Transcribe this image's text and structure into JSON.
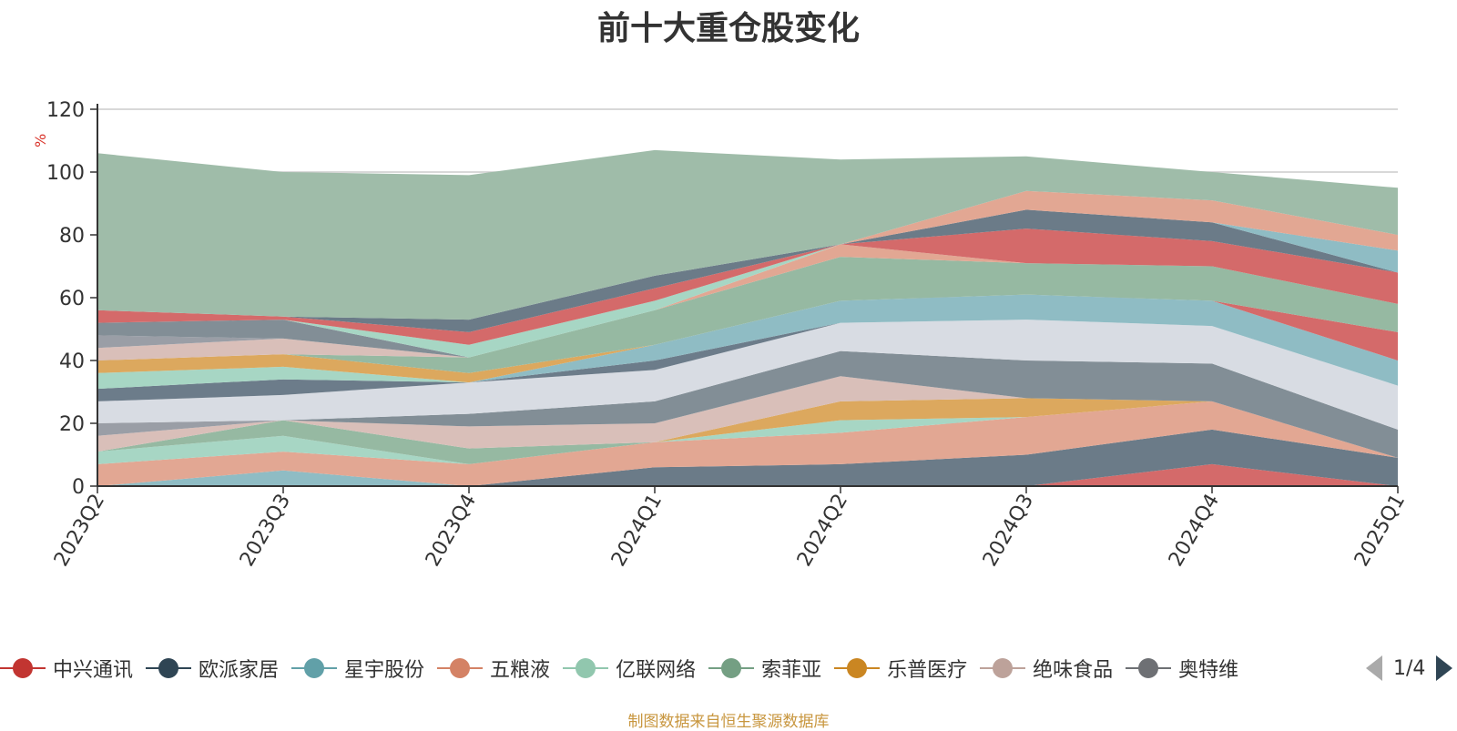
{
  "chart_data": {
    "type": "area",
    "title": "前十大重仓股变化",
    "ylabel": "%",
    "xlabel": "",
    "ylim": [
      0,
      120
    ],
    "yticks": [
      0,
      20,
      40,
      60,
      80,
      100,
      120
    ],
    "grid": true,
    "stacked": true,
    "legend_placement": "bottom",
    "categories": [
      "2023Q2",
      "2023Q3",
      "2023Q4",
      "2024Q1",
      "2024Q2",
      "2024Q3",
      "2024Q4",
      "2025Q1"
    ],
    "layers": [
      {
        "color": "#d46a6a",
        "values": [
          0,
          0,
          0,
          0,
          0,
          0,
          7,
          0
        ]
      },
      {
        "color": "#6b7b88",
        "values": [
          0,
          0,
          0,
          6,
          7,
          10,
          11,
          9
        ]
      },
      {
        "color": "#8fbcc4",
        "values": [
          0,
          5,
          0,
          0,
          0,
          0,
          0,
          0
        ]
      },
      {
        "color": "#e2a793",
        "values": [
          7,
          6,
          7,
          8,
          10,
          12,
          9,
          0
        ]
      },
      {
        "color": "#a7d6c4",
        "values": [
          4,
          5,
          0,
          0,
          4,
          0,
          0,
          0
        ]
      },
      {
        "color": "#96b9a2",
        "values": [
          0,
          5,
          5,
          0,
          0,
          0,
          0,
          0
        ]
      },
      {
        "color": "#dca85e",
        "values": [
          0,
          0,
          0,
          0,
          6,
          6,
          0,
          0
        ]
      },
      {
        "color": "#d9bfb9",
        "values": [
          5,
          0,
          7,
          6,
          8,
          0,
          0,
          0
        ]
      },
      {
        "color": "#9a9ea6",
        "values": [
          4,
          0,
          0,
          0,
          0,
          0,
          0,
          0
        ]
      },
      {
        "color": "#828e96",
        "values": [
          0,
          0,
          4,
          7,
          8,
          12,
          12,
          9
        ]
      },
      {
        "color": "#d8dce3",
        "values": [
          7,
          8,
          10,
          10,
          9,
          13,
          12,
          14
        ]
      },
      {
        "color": "#6c7c8a",
        "values": [
          4,
          5,
          0,
          3,
          0,
          0,
          0,
          0
        ]
      },
      {
        "color": "#a7d6c4",
        "values": [
          5,
          4,
          0,
          0,
          0,
          0,
          0,
          0
        ]
      },
      {
        "color": "#8fbcc4",
        "values": [
          0,
          0,
          0,
          5,
          7,
          8,
          8,
          8
        ]
      },
      {
        "color": "#d46a6a",
        "values": [
          0,
          0,
          0,
          0,
          0,
          0,
          0,
          9
        ]
      },
      {
        "color": "#dca85e",
        "values": [
          4,
          4,
          3,
          0,
          0,
          0,
          0,
          0
        ]
      },
      {
        "color": "#96b9a2",
        "values": [
          0,
          0,
          5,
          11,
          14,
          10,
          11,
          9
        ]
      },
      {
        "color": "#d9bfb9",
        "values": [
          4,
          5,
          0,
          0,
          0,
          0,
          0,
          0
        ]
      },
      {
        "color": "#e2a793",
        "values": [
          0,
          0,
          0,
          0,
          4,
          0,
          0,
          0
        ]
      },
      {
        "color": "#9a9ea6",
        "values": [
          4,
          0,
          0,
          0,
          0,
          0,
          0,
          0
        ]
      },
      {
        "color": "#828e96",
        "values": [
          4,
          6,
          0,
          0,
          0,
          0,
          0,
          0
        ]
      },
      {
        "color": "#a7d6c4",
        "values": [
          0,
          0,
          4,
          3,
          0,
          0,
          0,
          0
        ]
      },
      {
        "color": "#d46a6a",
        "values": [
          4,
          1,
          4,
          4,
          0,
          11,
          8,
          10
        ]
      },
      {
        "color": "#6b7b88",
        "values": [
          0,
          0,
          4,
          4,
          0,
          6,
          6,
          0
        ]
      },
      {
        "color": "#8fbcc4",
        "values": [
          0,
          0,
          0,
          0,
          0,
          0,
          0,
          7
        ]
      },
      {
        "color": "#e2a793",
        "values": [
          0,
          0,
          0,
          0,
          0,
          6,
          7,
          5
        ]
      },
      {
        "color": "#9fbca9",
        "values": [
          50,
          46,
          46,
          40,
          27,
          11,
          9,
          15
        ]
      }
    ],
    "legend": [
      {
        "name": "中兴通讯",
        "color": "#c23531"
      },
      {
        "name": "欧派家居",
        "color": "#2f4554"
      },
      {
        "name": "星宇股份",
        "color": "#61a0a8"
      },
      {
        "name": "五粮液",
        "color": "#d48265"
      },
      {
        "name": "亿联网络",
        "color": "#91c7ae"
      },
      {
        "name": "索菲亚",
        "color": "#749f83"
      },
      {
        "name": "乐普医疗",
        "color": "#ca8622"
      },
      {
        "name": "绝味食品",
        "color": "#bda29a"
      },
      {
        "name": "奥特维",
        "color": "#6e7074"
      }
    ],
    "pager": "1/4",
    "source": "制图数据来自恒生聚源数据库"
  }
}
